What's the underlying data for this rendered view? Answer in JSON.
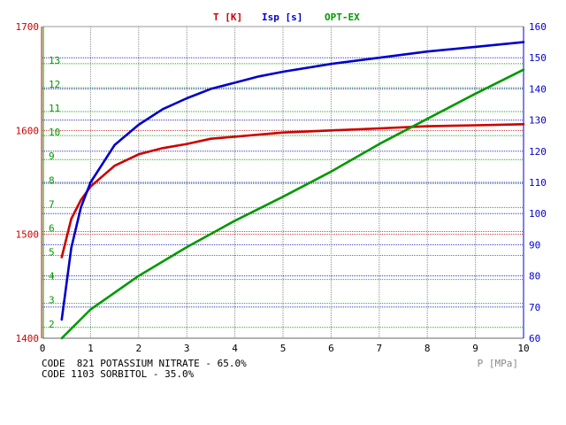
{
  "chart_data": {
    "type": "line",
    "title": "",
    "legend": [
      "T [K]",
      "Isp [s]",
      "OPT-EX"
    ],
    "legend_placement": "top-center",
    "grid": true,
    "xlabel": "P [MPa]",
    "xlim": [
      0,
      10
    ],
    "x_ticks": [
      "0",
      "1",
      "2",
      "3",
      "4",
      "5",
      "6",
      "7",
      "8",
      "9",
      "10"
    ],
    "axes": {
      "T": {
        "color": "#cc0000",
        "ylim": [
          1400,
          1700
        ],
        "ticks": [
          "1400",
          "1500",
          "1600",
          "1700"
        ]
      },
      "Isp": {
        "color": "#0000cc",
        "ylim": [
          60,
          160
        ],
        "ticks": [
          "60",
          "70",
          "80",
          "90",
          "100",
          "110",
          "120",
          "130",
          "140",
          "150",
          "160"
        ]
      },
      "OPTEX": {
        "color": "#009900",
        "ylim": [
          1.4,
          14.4
        ],
        "ticks": [
          "2",
          "3",
          "4",
          "5",
          "6",
          "7",
          "8",
          "9",
          "10",
          "11",
          "12",
          "13"
        ]
      }
    },
    "series": [
      {
        "name": "T [K]",
        "axis": "T",
        "color": "#cc0000",
        "x": [
          0.4,
          0.6,
          0.8,
          1.0,
          1.5,
          2.0,
          2.5,
          3.0,
          3.5,
          4.0,
          4.5,
          5.0,
          6.0,
          7.0,
          8.0,
          9.0,
          10.0
        ],
        "y": [
          1478,
          1515,
          1533,
          1546,
          1566,
          1577,
          1583,
          1587,
          1592,
          1594,
          1596,
          1598,
          1600,
          1602,
          1604,
          1605,
          1606
        ]
      },
      {
        "name": "Isp [s]",
        "axis": "Isp",
        "color": "#0000cc",
        "x": [
          0.4,
          0.6,
          0.8,
          1.0,
          1.5,
          2.0,
          2.5,
          3.0,
          3.5,
          4.0,
          4.5,
          5.0,
          6.0,
          7.0,
          8.0,
          9.0,
          10.0
        ],
        "y": [
          66,
          89,
          102,
          110,
          122,
          128.5,
          133.5,
          137,
          140,
          142,
          144,
          145.5,
          148,
          150,
          152,
          153.5,
          155
        ]
      },
      {
        "name": "OPT-EX",
        "axis": "OPTEX",
        "color": "#009900",
        "x": [
          0.4,
          1.0,
          2.0,
          3.0,
          4.0,
          5.0,
          6.0,
          7.0,
          8.0,
          9.0,
          10.0
        ],
        "y": [
          1.4,
          2.6,
          4.0,
          5.2,
          6.3,
          7.3,
          8.35,
          9.5,
          10.55,
          11.6,
          12.6
        ]
      }
    ]
  },
  "footer": {
    "line1": "CODE  821 POTASSIUM NITRATE - 65.0%",
    "line2": "CODE 1103 SORBITOL - 35.0%"
  }
}
